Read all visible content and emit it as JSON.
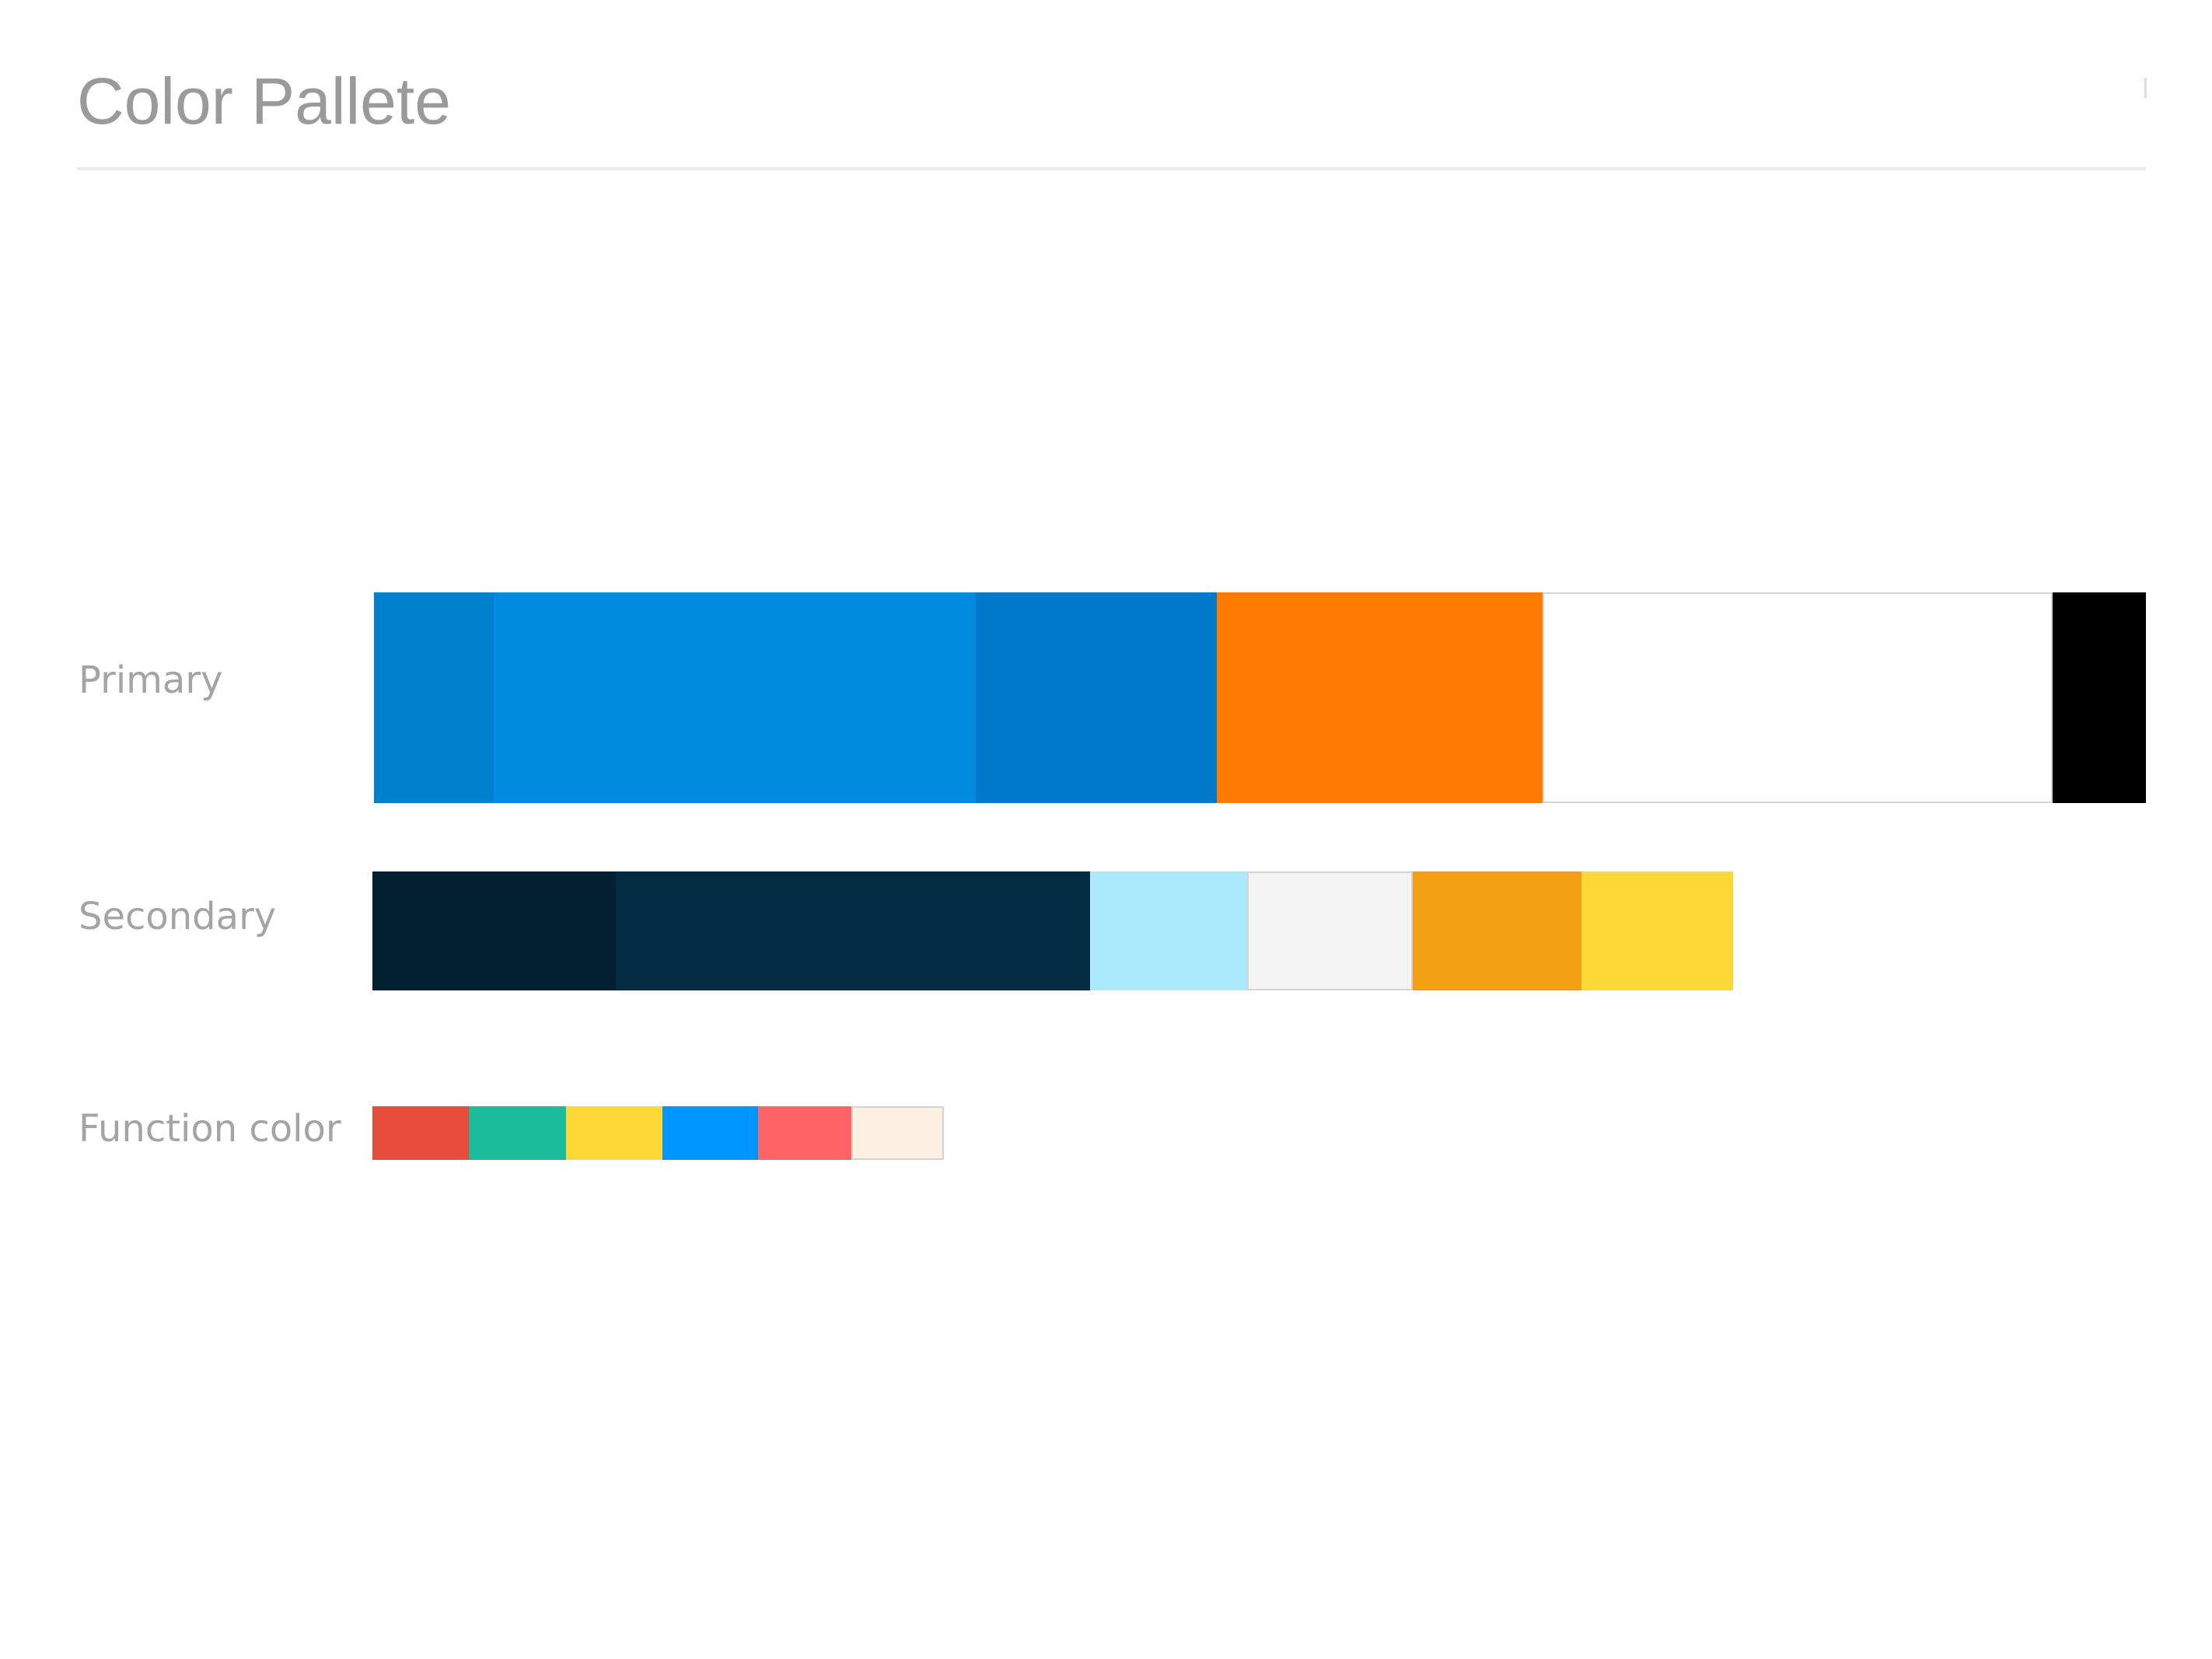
{
  "page": {
    "title": "Color Pallete"
  },
  "palette": {
    "primary": {
      "label": "Primary",
      "swatches": [
        {
          "name": "primary-blue-dark",
          "color": "#0081CD",
          "share": 0.0676
        },
        {
          "name": "primary-blue",
          "color": "#008BDF",
          "share": 0.272
        },
        {
          "name": "primary-blue-deep",
          "color": "#0079CB",
          "share": 0.136
        },
        {
          "name": "primary-orange",
          "color": "#FF7B00",
          "share": 0.1839
        },
        {
          "name": "primary-white",
          "color": "#FFFFFF",
          "share": 0.288,
          "light": true
        },
        {
          "name": "primary-black",
          "color": "#000000",
          "share": 0.0525
        }
      ]
    },
    "secondary": {
      "label": "Secondary",
      "swatches": [
        {
          "name": "secondary-navy-dark",
          "color": "#011F31",
          "share": 0.1786
        },
        {
          "name": "secondary-navy",
          "color": "#022A42",
          "share": 0.3486
        },
        {
          "name": "secondary-sky",
          "color": "#ABE9FC",
          "share": 0.1154
        },
        {
          "name": "secondary-light-gray",
          "color": "#F4F4F4",
          "share": 0.1217,
          "light": true
        },
        {
          "name": "secondary-amber",
          "color": "#F39F14",
          "share": 0.124
        },
        {
          "name": "secondary-yellow",
          "color": "#FED836",
          "share": 0.1117
        }
      ]
    },
    "function": {
      "label": "Function color",
      "swatches": [
        {
          "name": "function-red",
          "color": "#E84C3D",
          "share": 0.1693
        },
        {
          "name": "function-teal",
          "color": "#1ABC9C",
          "share": 0.1692
        },
        {
          "name": "function-yellow",
          "color": "#FED836",
          "share": 0.1692
        },
        {
          "name": "function-blue",
          "color": "#0096FF",
          "share": 0.1667
        },
        {
          "name": "function-coral",
          "color": "#FF6366",
          "share": 0.1642
        },
        {
          "name": "function-cream",
          "color": "#FDF0E3",
          "share": 0.1617,
          "light": true
        }
      ]
    }
  }
}
